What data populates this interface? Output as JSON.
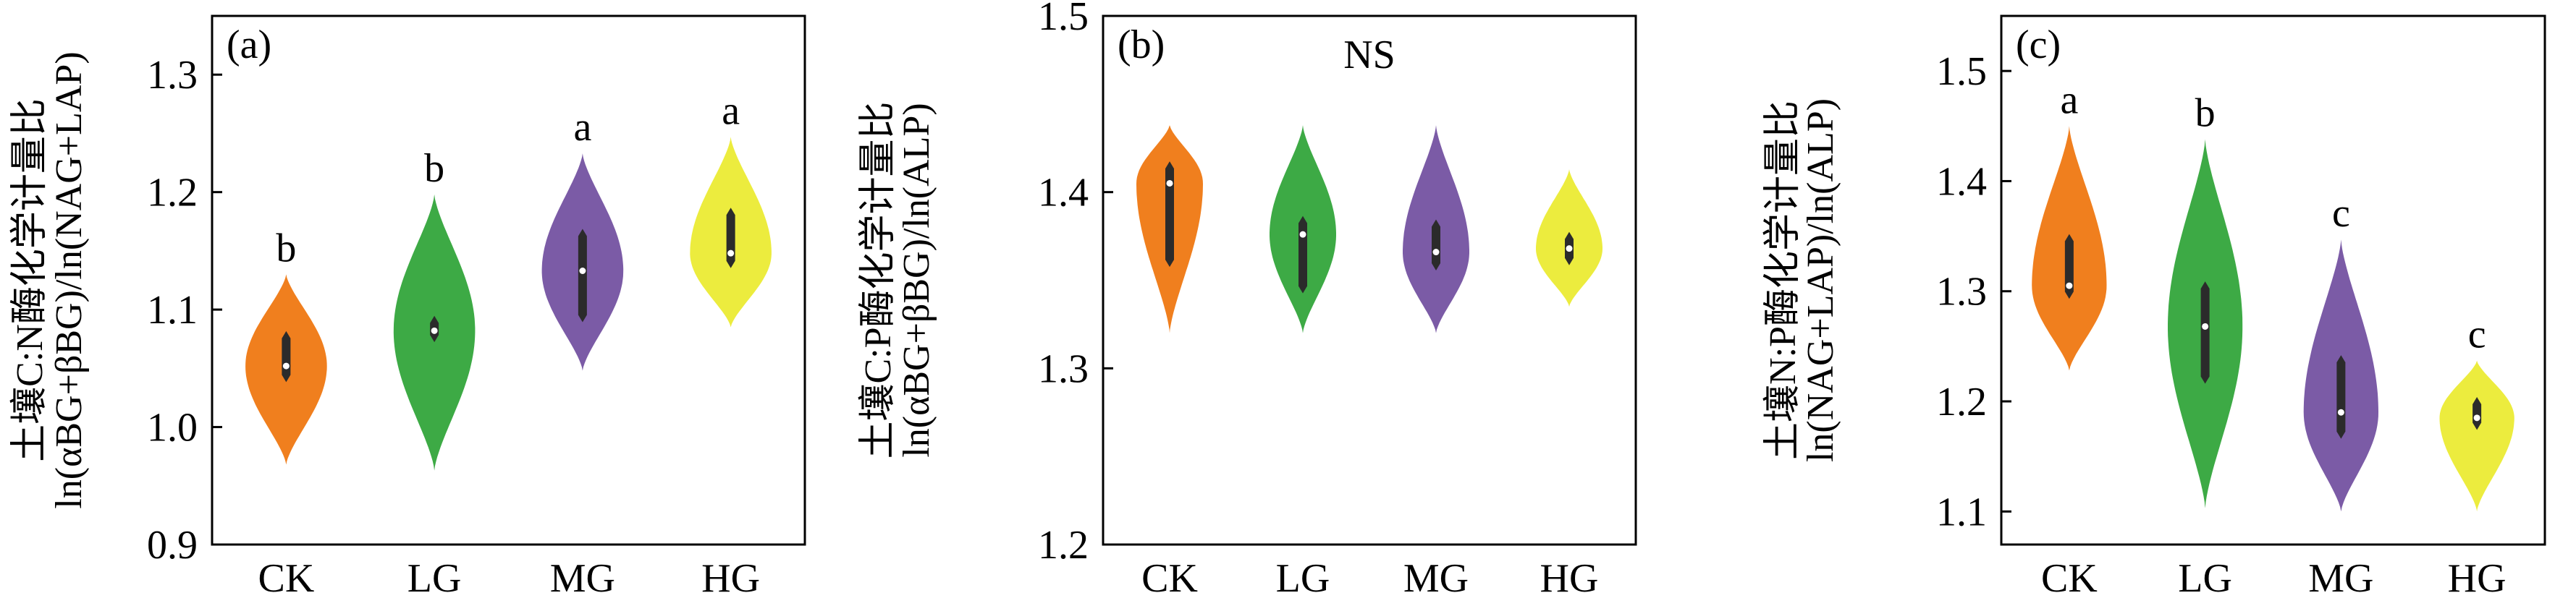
{
  "chart_data": [
    {
      "type": "violin",
      "panel_label": "(a)",
      "ylabel_line1": "土壤C:N酶化学计量比",
      "ylabel_line2": "ln(αBG+βBG)/ln(NAG+LAP)",
      "ylim": [
        0.9,
        1.35
      ],
      "yticks": [
        "0.9",
        "1.0",
        "1.1",
        "1.2",
        "1.3"
      ],
      "categories": [
        "CK",
        "LG",
        "MG",
        "HG"
      ],
      "colors": [
        "#F07F1E",
        "#3DAA45",
        "#7B5BA6",
        "#ECEC3E"
      ],
      "violins": [
        {
          "min": 0.968,
          "max": 1.13,
          "median": 1.052,
          "q1": 1.042,
          "q3": 1.078,
          "width": 0.55
        },
        {
          "min": 0.963,
          "max": 1.198,
          "median": 1.082,
          "q1": 1.076,
          "q3": 1.091,
          "width": 0.55
        },
        {
          "min": 1.048,
          "max": 1.233,
          "median": 1.133,
          "q1": 1.093,
          "q3": 1.165,
          "width": 0.55
        },
        {
          "min": 1.085,
          "max": 1.247,
          "median": 1.148,
          "q1": 1.139,
          "q3": 1.183,
          "width": 0.55
        }
      ],
      "letters": [
        "b",
        "b",
        "a",
        "a"
      ]
    },
    {
      "type": "violin",
      "panel_label": "(b)",
      "annotation": "NS",
      "ylabel_line1": "土壤C:P酶化学计量比",
      "ylabel_line2": "ln(αBG+βBG)/ln(ALP)",
      "ylim": [
        1.2,
        1.5
      ],
      "yticks": [
        "1.2",
        "1.3",
        "1.4",
        "1.5"
      ],
      "categories": [
        "CK",
        "LG",
        "MG",
        "HG"
      ],
      "colors": [
        "#F07F1E",
        "#3DAA45",
        "#7B5BA6",
        "#ECEC3E"
      ],
      "violins": [
        {
          "min": 1.32,
          "max": 1.438,
          "median": 1.405,
          "q1": 1.36,
          "q3": 1.415,
          "width": 0.5
        },
        {
          "min": 1.32,
          "max": 1.438,
          "median": 1.376,
          "q1": 1.345,
          "q3": 1.384,
          "width": 0.5
        },
        {
          "min": 1.32,
          "max": 1.438,
          "median": 1.366,
          "q1": 1.358,
          "q3": 1.382,
          "width": 0.5
        },
        {
          "min": 1.335,
          "max": 1.413,
          "median": 1.368,
          "q1": 1.361,
          "q3": 1.375,
          "width": 0.5
        }
      ]
    },
    {
      "type": "violin",
      "panel_label": "(c)",
      "ylabel_line1": "土壤N:P酶化学计量比",
      "ylabel_line2": "ln(NAG+LAP)/ln(ALP)",
      "ylim": [
        1.07,
        1.55
      ],
      "yticks": [
        "1.1",
        "1.2",
        "1.3",
        "1.4",
        "1.5"
      ],
      "categories": [
        "CK",
        "LG",
        "MG",
        "HG"
      ],
      "colors": [
        "#F07F1E",
        "#3DAA45",
        "#7B5BA6",
        "#ECEC3E"
      ],
      "violins": [
        {
          "min": 1.228,
          "max": 1.45,
          "median": 1.305,
          "q1": 1.297,
          "q3": 1.348,
          "width": 0.55
        },
        {
          "min": 1.103,
          "max": 1.438,
          "median": 1.268,
          "q1": 1.22,
          "q3": 1.305,
          "width": 0.55
        },
        {
          "min": 1.1,
          "max": 1.347,
          "median": 1.19,
          "q1": 1.17,
          "q3": 1.238,
          "width": 0.55
        },
        {
          "min": 1.1,
          "max": 1.237,
          "median": 1.185,
          "q1": 1.178,
          "q3": 1.2,
          "width": 0.55
        }
      ],
      "letters": [
        "a",
        "b",
        "c",
        "c"
      ]
    }
  ]
}
